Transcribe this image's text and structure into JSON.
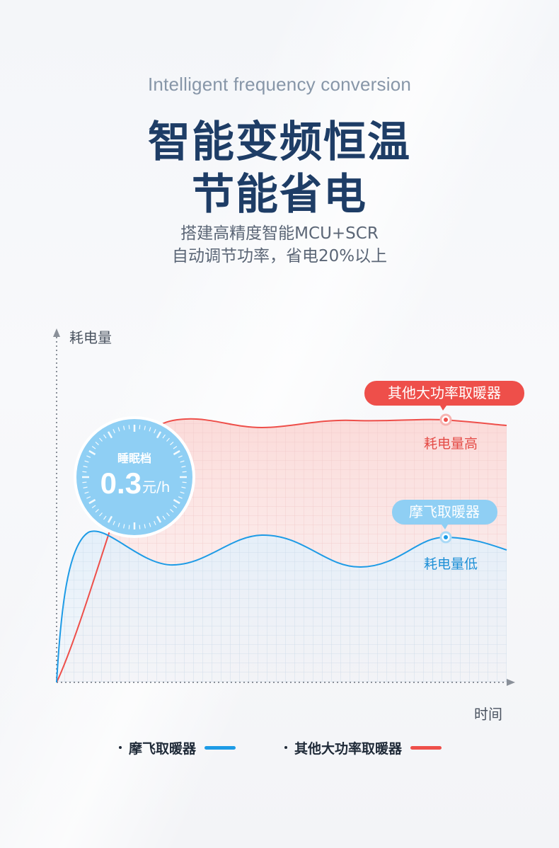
{
  "header": {
    "subtitle_en": "Intelligent frequency conversion",
    "title_line1": "智能变频恒温",
    "title_line2": "节能省电",
    "desc_line1": "搭建高精度智能MCU+SCR",
    "desc_line2": "自动调节功率，省电20%以上"
  },
  "badge": {
    "label": "睡眠档",
    "value": "0.3",
    "unit": "元/h"
  },
  "colors": {
    "title": "#1e3d66",
    "blue": "#1d9be6",
    "red": "#ee4f4a",
    "badge": "#8fcff4"
  },
  "chart_data": {
    "type": "line",
    "ylabel": "耗电量",
    "xlabel": "时间",
    "grid": true,
    "series": [
      {
        "name": "其他大功率取暖器",
        "color": "#ee4f4a",
        "callout": "其他大功率取暖器",
        "annotation": "耗电量高"
      },
      {
        "name": "摩飞取暖器",
        "color": "#1d9be6",
        "callout": "摩飞取暖器",
        "annotation": "耗电量低"
      }
    ]
  },
  "legend": [
    {
      "label": "摩飞取暖器",
      "color": "#1d9be6"
    },
    {
      "label": "其他大功率取暖器",
      "color": "#ee4f4a"
    }
  ]
}
